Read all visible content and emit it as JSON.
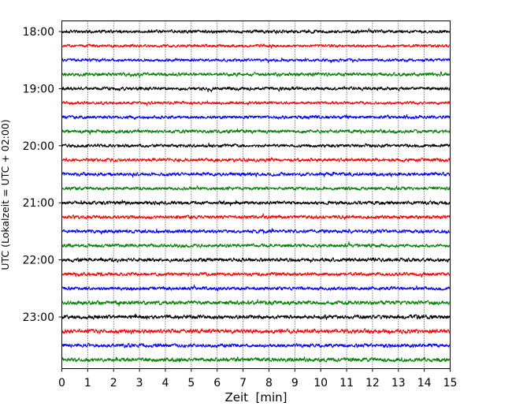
{
  "chart_data": {
    "type": "line",
    "title": "",
    "xlabel": "Zeit  [min]",
    "ylabel": "UTC (Lokalzeit = UTC + 02:00)",
    "xlim": [
      0,
      15
    ],
    "x_ticks": [
      "0",
      "1",
      "2",
      "3",
      "4",
      "5",
      "6",
      "7",
      "8",
      "9",
      "10",
      "11",
      "12",
      "13",
      "14",
      "15"
    ],
    "y_ticks": [
      "18:00",
      "19:00",
      "20:00",
      "21:00",
      "22:00",
      "23:00"
    ],
    "grid": "vertical dotted",
    "legend": "none",
    "trace_colors": [
      "#000000",
      "#ff0000",
      "#0000ff",
      "#008000"
    ],
    "series": [
      {
        "start": "18:00",
        "amplitude": 0.28
      },
      {
        "start": "18:15",
        "amplitude": 0.25
      },
      {
        "start": "18:30",
        "amplitude": 0.26
      },
      {
        "start": "18:45",
        "amplitude": 0.3
      },
      {
        "start": "19:00",
        "amplitude": 0.3
      },
      {
        "start": "19:15",
        "amplitude": 0.26
      },
      {
        "start": "19:30",
        "amplitude": 0.28
      },
      {
        "start": "19:45",
        "amplitude": 0.3
      },
      {
        "start": "20:00",
        "amplitude": 0.28
      },
      {
        "start": "20:15",
        "amplitude": 0.3
      },
      {
        "start": "20:30",
        "amplitude": 0.3
      },
      {
        "start": "20:45",
        "amplitude": 0.28
      },
      {
        "start": "21:00",
        "amplitude": 0.3
      },
      {
        "start": "21:15",
        "amplitude": 0.3
      },
      {
        "start": "21:30",
        "amplitude": 0.3
      },
      {
        "start": "21:45",
        "amplitude": 0.3
      },
      {
        "start": "22:00",
        "amplitude": 0.32
      },
      {
        "start": "22:15",
        "amplitude": 0.3
      },
      {
        "start": "22:30",
        "amplitude": 0.3
      },
      {
        "start": "22:45",
        "amplitude": 0.34
      },
      {
        "start": "23:00",
        "amplitude": 0.34
      },
      {
        "start": "23:15",
        "amplitude": 0.36
      },
      {
        "start": "23:30",
        "amplitude": 0.32
      },
      {
        "start": "23:45",
        "amplitude": 0.34
      }
    ]
  }
}
